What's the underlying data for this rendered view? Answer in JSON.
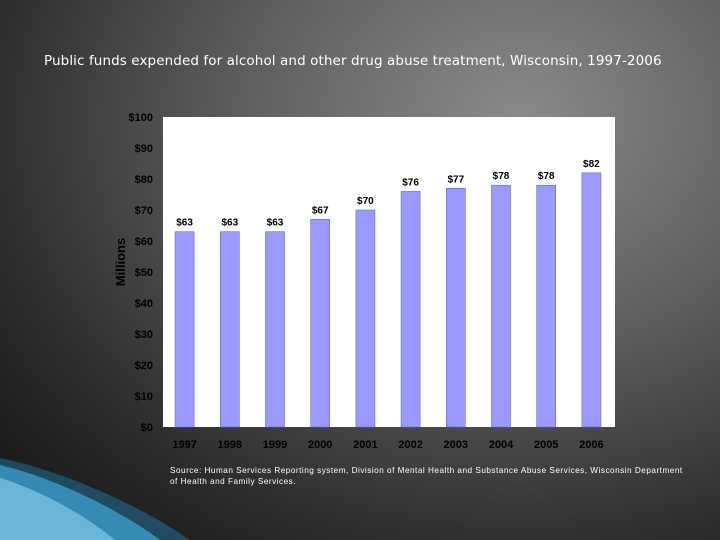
{
  "slide": {
    "title": "Public funds expended for alcohol and other drug abuse treatment, Wisconsin, 1997-2006",
    "source": "Source: Human Services Reporting system, Division of Mental Health and Substance Abuse Services, Wisconsin Department of Health and Family Services."
  },
  "chart_data": {
    "type": "bar",
    "title": "",
    "xlabel": "",
    "ylabel": "Millions",
    "categories": [
      "1997",
      "1998",
      "1999",
      "2000",
      "2001",
      "2002",
      "2003",
      "2004",
      "2005",
      "2006"
    ],
    "series": [
      {
        "values": [
          63,
          63,
          63,
          67,
          70,
          76,
          77,
          78,
          78,
          82
        ],
        "labels": [
          "$63",
          "$63",
          "$63",
          "$67",
          "$70",
          "$76",
          "$77",
          "$78",
          "$78",
          "$82"
        ]
      }
    ],
    "ylim": [
      0,
      100
    ],
    "yticks": [
      0,
      10,
      20,
      30,
      40,
      50,
      60,
      70,
      80,
      90,
      100
    ],
    "ytick_labels": [
      "$0",
      "$10",
      "$20",
      "$30",
      "$40",
      "$50",
      "$60",
      "$70",
      "$80",
      "$90",
      "$100"
    ],
    "grid": false,
    "legend": "none",
    "colors": {
      "bar": "#9999ff",
      "bar_edge": "#6666cc",
      "plot_bg": "#ffffff",
      "axis_text": "#000000"
    }
  }
}
